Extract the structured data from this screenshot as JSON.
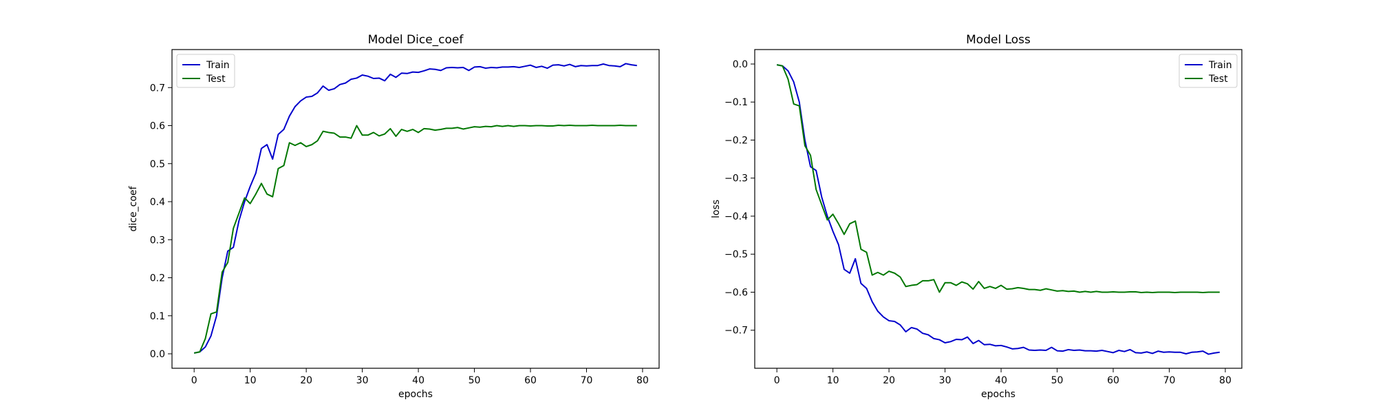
{
  "chart_data": [
    {
      "type": "line",
      "title": "Model Dice_coef",
      "xlabel": "epochs",
      "ylabel": "dice_coef",
      "xlim": [
        -3.95,
        82.95
      ],
      "ylim": [
        -0.038,
        0.8
      ],
      "xticks": [
        0,
        10,
        20,
        30,
        40,
        50,
        60,
        70,
        80
      ],
      "yticks": [
        0.0,
        0.1,
        0.2,
        0.3,
        0.4,
        0.5,
        0.6,
        0.7
      ],
      "ytick_labels": [
        "0.0",
        "0.1",
        "0.2",
        "0.3",
        "0.4",
        "0.5",
        "0.6",
        "0.7"
      ],
      "legend": "top-left",
      "grid": false,
      "series": [
        {
          "name": "Train",
          "color": "#0000cc",
          "x": [
            0,
            1,
            2,
            3,
            4,
            5,
            6,
            7,
            8,
            9,
            10,
            11,
            12,
            13,
            14,
            15,
            16,
            17,
            18,
            19,
            20,
            21,
            22,
            23,
            24,
            25,
            26,
            27,
            28,
            29,
            30,
            31,
            32,
            33,
            34,
            35,
            36,
            37,
            38,
            39,
            40,
            41,
            42,
            43,
            44,
            45,
            46,
            47,
            48,
            49,
            50,
            51,
            52,
            53,
            54,
            55,
            56,
            57,
            58,
            59,
            60,
            61,
            62,
            63,
            64,
            65,
            66,
            67,
            68,
            69,
            70,
            71,
            72,
            73,
            74,
            75,
            76,
            77,
            78,
            79
          ],
          "values": [
            0.002,
            0.005,
            0.018,
            0.047,
            0.1,
            0.2,
            0.27,
            0.28,
            0.35,
            0.4,
            0.44,
            0.475,
            0.54,
            0.55,
            0.512,
            0.577,
            0.59,
            0.625,
            0.65,
            0.665,
            0.675,
            0.677,
            0.686,
            0.704,
            0.693,
            0.697,
            0.708,
            0.712,
            0.722,
            0.725,
            0.733,
            0.73,
            0.724,
            0.725,
            0.718,
            0.735,
            0.727,
            0.738,
            0.737,
            0.741,
            0.74,
            0.744,
            0.749,
            0.748,
            0.745,
            0.752,
            0.753,
            0.752,
            0.753,
            0.745,
            0.754,
            0.755,
            0.751,
            0.753,
            0.752,
            0.754,
            0.754,
            0.755,
            0.753,
            0.756,
            0.759,
            0.753,
            0.756,
            0.751,
            0.759,
            0.76,
            0.757,
            0.761,
            0.755,
            0.758,
            0.757,
            0.758,
            0.758,
            0.762,
            0.758,
            0.757,
            0.755,
            0.763,
            0.76,
            0.758
          ]
        },
        {
          "name": "Test",
          "color": "#007700",
          "x": [
            0,
            1,
            2,
            3,
            4,
            5,
            6,
            7,
            8,
            9,
            10,
            11,
            12,
            13,
            14,
            15,
            16,
            17,
            18,
            19,
            20,
            21,
            22,
            23,
            24,
            25,
            26,
            27,
            28,
            29,
            30,
            31,
            32,
            33,
            34,
            35,
            36,
            37,
            38,
            39,
            40,
            41,
            42,
            43,
            44,
            45,
            46,
            47,
            48,
            49,
            50,
            51,
            52,
            53,
            54,
            55,
            56,
            57,
            58,
            59,
            60,
            61,
            62,
            63,
            64,
            65,
            66,
            67,
            68,
            69,
            70,
            71,
            72,
            73,
            74,
            75,
            76,
            77,
            78,
            79
          ],
          "values": [
            0.002,
            0.005,
            0.04,
            0.105,
            0.11,
            0.215,
            0.24,
            0.33,
            0.37,
            0.41,
            0.395,
            0.42,
            0.448,
            0.42,
            0.413,
            0.487,
            0.495,
            0.555,
            0.548,
            0.555,
            0.545,
            0.55,
            0.56,
            0.585,
            0.582,
            0.58,
            0.57,
            0.57,
            0.567,
            0.6,
            0.575,
            0.575,
            0.582,
            0.573,
            0.578,
            0.592,
            0.572,
            0.59,
            0.585,
            0.59,
            0.582,
            0.592,
            0.591,
            0.588,
            0.59,
            0.593,
            0.593,
            0.595,
            0.591,
            0.594,
            0.597,
            0.596,
            0.598,
            0.597,
            0.6,
            0.598,
            0.6,
            0.598,
            0.6,
            0.6,
            0.599,
            0.6,
            0.6,
            0.599,
            0.599,
            0.601,
            0.6,
            0.601,
            0.6,
            0.6,
            0.6,
            0.601,
            0.6,
            0.6,
            0.6,
            0.6,
            0.601,
            0.6,
            0.6,
            0.6
          ]
        }
      ]
    },
    {
      "type": "line",
      "title": "Model Loss",
      "xlabel": "epochs",
      "ylabel": "loss",
      "xlim": [
        -3.95,
        82.95
      ],
      "ylim": [
        -0.8,
        0.038
      ],
      "xticks": [
        0,
        10,
        20,
        30,
        40,
        50,
        60,
        70,
        80
      ],
      "yticks": [
        0.0,
        -0.1,
        -0.2,
        -0.3,
        -0.4,
        -0.5,
        -0.6,
        -0.7
      ],
      "ytick_labels": [
        "0.0",
        "−0.1",
        "−0.2",
        "−0.3",
        "−0.4",
        "−0.5",
        "−0.6",
        "−0.7"
      ],
      "legend": "top-right",
      "grid": false,
      "series": [
        {
          "name": "Train",
          "color": "#0000cc",
          "x": [
            0,
            1,
            2,
            3,
            4,
            5,
            6,
            7,
            8,
            9,
            10,
            11,
            12,
            13,
            14,
            15,
            16,
            17,
            18,
            19,
            20,
            21,
            22,
            23,
            24,
            25,
            26,
            27,
            28,
            29,
            30,
            31,
            32,
            33,
            34,
            35,
            36,
            37,
            38,
            39,
            40,
            41,
            42,
            43,
            44,
            45,
            46,
            47,
            48,
            49,
            50,
            51,
            52,
            53,
            54,
            55,
            56,
            57,
            58,
            59,
            60,
            61,
            62,
            63,
            64,
            65,
            66,
            67,
            68,
            69,
            70,
            71,
            72,
            73,
            74,
            75,
            76,
            77,
            78,
            79
          ],
          "values": [
            -0.002,
            -0.005,
            -0.018,
            -0.047,
            -0.1,
            -0.2,
            -0.27,
            -0.28,
            -0.35,
            -0.4,
            -0.44,
            -0.475,
            -0.54,
            -0.55,
            -0.512,
            -0.577,
            -0.59,
            -0.625,
            -0.65,
            -0.665,
            -0.675,
            -0.677,
            -0.686,
            -0.704,
            -0.693,
            -0.697,
            -0.708,
            -0.712,
            -0.722,
            -0.725,
            -0.733,
            -0.73,
            -0.724,
            -0.725,
            -0.718,
            -0.735,
            -0.727,
            -0.738,
            -0.737,
            -0.741,
            -0.74,
            -0.744,
            -0.749,
            -0.748,
            -0.745,
            -0.752,
            -0.753,
            -0.752,
            -0.753,
            -0.745,
            -0.754,
            -0.755,
            -0.751,
            -0.753,
            -0.752,
            -0.754,
            -0.754,
            -0.755,
            -0.753,
            -0.756,
            -0.759,
            -0.753,
            -0.756,
            -0.751,
            -0.759,
            -0.76,
            -0.757,
            -0.761,
            -0.755,
            -0.758,
            -0.757,
            -0.758,
            -0.758,
            -0.762,
            -0.758,
            -0.757,
            -0.755,
            -0.763,
            -0.76,
            -0.758
          ]
        },
        {
          "name": "Test",
          "color": "#007700",
          "x": [
            0,
            1,
            2,
            3,
            4,
            5,
            6,
            7,
            8,
            9,
            10,
            11,
            12,
            13,
            14,
            15,
            16,
            17,
            18,
            19,
            20,
            21,
            22,
            23,
            24,
            25,
            26,
            27,
            28,
            29,
            30,
            31,
            32,
            33,
            34,
            35,
            36,
            37,
            38,
            39,
            40,
            41,
            42,
            43,
            44,
            45,
            46,
            47,
            48,
            49,
            50,
            51,
            52,
            53,
            54,
            55,
            56,
            57,
            58,
            59,
            60,
            61,
            62,
            63,
            64,
            65,
            66,
            67,
            68,
            69,
            70,
            71,
            72,
            73,
            74,
            75,
            76,
            77,
            78,
            79
          ],
          "values": [
            -0.002,
            -0.005,
            -0.04,
            -0.105,
            -0.11,
            -0.215,
            -0.24,
            -0.33,
            -0.37,
            -0.41,
            -0.395,
            -0.42,
            -0.448,
            -0.42,
            -0.413,
            -0.487,
            -0.495,
            -0.555,
            -0.548,
            -0.555,
            -0.545,
            -0.55,
            -0.56,
            -0.585,
            -0.582,
            -0.58,
            -0.57,
            -0.57,
            -0.567,
            -0.6,
            -0.575,
            -0.575,
            -0.582,
            -0.573,
            -0.578,
            -0.592,
            -0.572,
            -0.59,
            -0.585,
            -0.59,
            -0.582,
            -0.592,
            -0.591,
            -0.588,
            -0.59,
            -0.593,
            -0.593,
            -0.595,
            -0.591,
            -0.594,
            -0.597,
            -0.596,
            -0.598,
            -0.597,
            -0.6,
            -0.598,
            -0.6,
            -0.598,
            -0.6,
            -0.6,
            -0.599,
            -0.6,
            -0.6,
            -0.599,
            -0.599,
            -0.601,
            -0.6,
            -0.601,
            -0.6,
            -0.6,
            -0.6,
            -0.601,
            -0.6,
            -0.6,
            -0.6,
            -0.6,
            -0.601,
            -0.6,
            -0.6,
            -0.6
          ]
        }
      ]
    }
  ]
}
